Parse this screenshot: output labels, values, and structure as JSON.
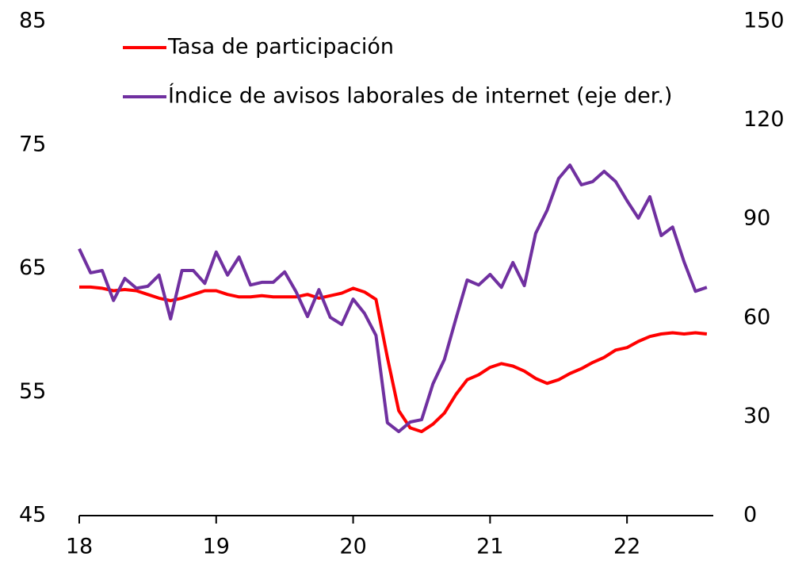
{
  "chart_data": {
    "type": "line",
    "x": [
      18,
      18.083,
      18.167,
      18.25,
      18.333,
      18.417,
      18.5,
      18.583,
      18.667,
      18.75,
      18.833,
      18.917,
      19,
      19.083,
      19.167,
      19.25,
      19.333,
      19.417,
      19.5,
      19.583,
      19.667,
      19.75,
      19.833,
      19.917,
      20,
      20.083,
      20.167,
      20.25,
      20.333,
      20.417,
      20.5,
      20.583,
      20.667,
      20.75,
      20.833,
      20.917,
      21,
      21.083,
      21.167,
      21.25,
      21.333,
      21.417,
      21.5,
      21.583,
      21.667,
      21.75,
      21.833,
      21.917,
      22,
      22.083,
      22.167,
      22.25,
      22.333,
      22.417,
      22.5,
      22.583
    ],
    "series": [
      {
        "name": "Tasa de participación",
        "color": "#ff0000",
        "values": [
          63.5,
          63.5,
          63.4,
          63.2,
          63.3,
          63.2,
          62.9,
          62.6,
          62.4,
          62.6,
          62.9,
          63.2,
          63.2,
          62.9,
          62.7,
          62.7,
          62.8,
          62.7,
          62.7,
          62.7,
          62.9,
          62.6,
          62.8,
          63.0,
          63.4,
          63.1,
          62.5,
          57.8,
          53.5,
          52.1,
          51.8,
          52.4,
          53.3,
          54.8,
          56.0,
          56.4,
          57.0,
          57.3,
          57.1,
          56.7,
          56.1,
          55.7,
          56.0,
          56.5,
          56.9,
          57.4,
          57.8,
          58.4,
          58.6,
          59.1,
          59.5,
          59.7,
          59.8,
          59.7,
          59.8,
          59.7
        ]
      },
      {
        "name": "Índice de avisos laborales de internet  (eje der.)",
        "color": "#7030a0",
        "axis": "y2",
        "values": [
          81,
          73.7,
          74.4,
          65.3,
          72,
          69,
          69.6,
          73,
          59.7,
          74.4,
          74.4,
          70.5,
          80,
          73,
          78.5,
          70,
          70.8,
          70.8,
          74,
          68,
          60.4,
          68.6,
          60.2,
          58,
          65.7,
          61.4,
          54.7,
          28.2,
          25.5,
          28.4,
          29.1,
          40,
          47.4,
          59.7,
          71.5,
          70,
          73.2,
          69.3,
          76.8,
          69.8,
          85.7,
          92.7,
          102.3,
          106.4,
          100.4,
          101.4,
          104.5,
          101.4,
          95.6,
          90.3,
          96.8,
          85,
          87.6,
          77,
          68.1,
          69.3
        ]
      }
    ],
    "xlim": [
      18,
      22.63
    ],
    "xticks": [
      18,
      19,
      20,
      21,
      22
    ],
    "ylim": [
      45,
      85
    ],
    "yticks": [
      45,
      55,
      65,
      75,
      85
    ],
    "y2lim": [
      0,
      150
    ],
    "y2ticks": [
      0,
      30,
      60,
      90,
      120,
      150
    ]
  }
}
